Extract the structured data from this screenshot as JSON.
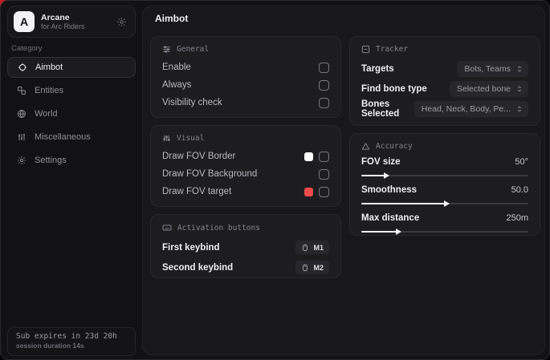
{
  "colors": {
    "accent_red": "#ee4a4c",
    "swatch_white": "#ffffff",
    "corner_red": "#c81e24",
    "slider_fill": "#f5f5f7"
  },
  "sidebar": {
    "app": {
      "initial": "A",
      "title": "Arcane",
      "subtitle": "for Arc Riders"
    },
    "category_label": "Category",
    "items": [
      {
        "label": "Aimbot",
        "icon": "crosshair-icon",
        "active": true
      },
      {
        "label": "Entities",
        "icon": "entities-icon",
        "active": false
      },
      {
        "label": "World",
        "icon": "globe-icon",
        "active": false
      },
      {
        "label": "Miscellaneous",
        "icon": "bars-icon",
        "active": false
      },
      {
        "label": "Settings",
        "icon": "gear-icon",
        "active": false
      }
    ],
    "footer": {
      "line1": "Sub expires in 23d 20h",
      "line2": "session duration 14s"
    }
  },
  "main": {
    "title": "Aimbot",
    "panels": {
      "general": {
        "title": "General",
        "rows": [
          {
            "label": "Enable",
            "checked": false
          },
          {
            "label": "Always",
            "checked": false
          },
          {
            "label": "Visibility check",
            "checked": false
          }
        ]
      },
      "visual": {
        "title": "Visual",
        "rows": [
          {
            "label": "Draw FOV Border",
            "swatch": "#ffffff",
            "checked": false
          },
          {
            "label": "Draw FOV Background",
            "checked": false
          },
          {
            "label": "Draw FOV target",
            "swatch": "#ee4a4c",
            "checked": false
          }
        ]
      },
      "activation": {
        "title": "Activation buttons",
        "rows": [
          {
            "label": "First keybind",
            "key": "M1"
          },
          {
            "label": "Second keybind",
            "key": "M2"
          }
        ]
      },
      "tracker": {
        "title": "Tracker",
        "rows": [
          {
            "label": "Targets",
            "value": "Bots, Teams"
          },
          {
            "label": "Find bone type",
            "value": "Selected bone"
          },
          {
            "label": "Bones Selected",
            "value": "Head, Neck, Body, Pe..."
          }
        ]
      },
      "accuracy": {
        "title": "Accuracy",
        "rows": [
          {
            "label": "FOV size",
            "value": "50°",
            "percent": 14
          },
          {
            "label": "Smoothness",
            "value": "50.0",
            "percent": 50
          },
          {
            "label": "Max distance",
            "value": "250m",
            "percent": 21
          }
        ]
      }
    }
  }
}
